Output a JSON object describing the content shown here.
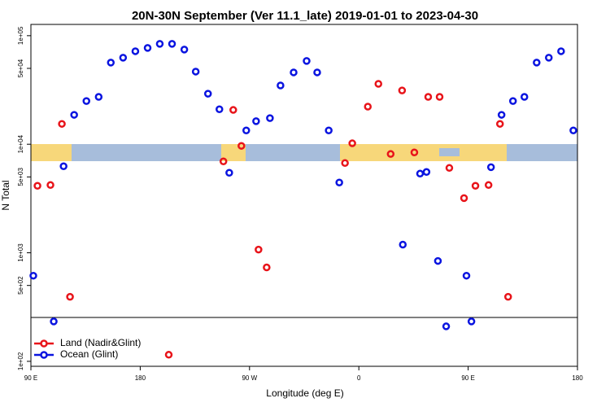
{
  "chart_data": {
    "type": "scatter",
    "log_scale_y": true,
    "title": "20N-30N September (Ver 11.1_late)   2019-01-01 to 2023-04-30",
    "x_label": "Longitude (deg E)",
    "y_label": "N Total",
    "xlim": [
      90,
      540
    ],
    "xticks": [
      {
        "value": 90,
        "label": "90 E"
      },
      180,
      {
        "value": 270,
        "label": "90 W"
      },
      {
        "value": 360,
        "label": "0"
      },
      {
        "value": 450,
        "label": "90 E"
      },
      {
        "value": 540,
        "label": "180"
      }
    ],
    "ylim": [
      90,
      127000
    ],
    "yticks": [
      {
        "value": 100,
        "label": "1e+02"
      },
      {
        "value": 500,
        "label": "5e+02"
      },
      {
        "value": 1000,
        "label": "1e+03"
      },
      {
        "value": 5000,
        "label": "5e+03"
      },
      {
        "value": 10000,
        "label": "1e+04"
      },
      {
        "value": 50000,
        "label": "5e+04"
      },
      {
        "value": 100000,
        "label": "1e+05"
      }
    ],
    "legend_position": "lower left",
    "series": [
      {
        "name": "Land (Nadir&Glint)",
        "color": "#e8141a",
        "x": [
          95.4,
          106.1,
          115.5,
          122.2,
          203.5,
          248.5,
          256.6,
          263.3,
          277.4,
          284.1,
          348.6,
          354.6,
          367.4,
          376.1,
          386.2,
          395.6,
          405.7,
          417.1,
          426.5,
          434.5,
          446.6,
          456.0,
          466.8,
          476.2,
          482.9
        ],
        "values": [
          4140,
          4210,
          15400,
          393,
          115,
          6950,
          20700,
          9660,
          1070,
          733,
          6710,
          10200,
          22200,
          36000,
          8130,
          31300,
          8410,
          27300,
          27300,
          6050,
          3190,
          4140,
          4210,
          15400,
          393
        ]
      },
      {
        "name": "Ocean (Glint)",
        "color": "#0a14e0",
        "x": [
          92.0,
          108.8,
          116.9,
          125.6,
          135.7,
          145.8,
          155.8,
          165.9,
          176.0,
          186.1,
          196.1,
          206.2,
          216.3,
          225.7,
          235.8,
          245.2,
          253.3,
          267.3,
          275.4,
          286.8,
          295.5,
          306.3,
          317.0,
          325.7,
          335.2,
          343.9,
          396.2,
          410.4,
          415.7,
          425.1,
          431.9,
          448.6,
          452.7,
          468.8,
          477.5,
          486.9,
          496.3,
          506.4,
          516.4,
          526.5,
          536.6
        ],
        "values": [
          615,
          233,
          6270,
          18660,
          25000,
          27300,
          56500,
          62700,
          71900,
          77100,
          84100,
          84100,
          74500,
          46700,
          29200,
          21000,
          5460,
          13400,
          16300,
          17400,
          34800,
          45900,
          58500,
          45900,
          13400,
          4440,
          1190,
          5360,
          5550,
          841,
          210,
          615,
          233,
          6150,
          18660,
          25000,
          27300,
          56500,
          62700,
          71900,
          13400
        ]
      }
    ]
  }
}
